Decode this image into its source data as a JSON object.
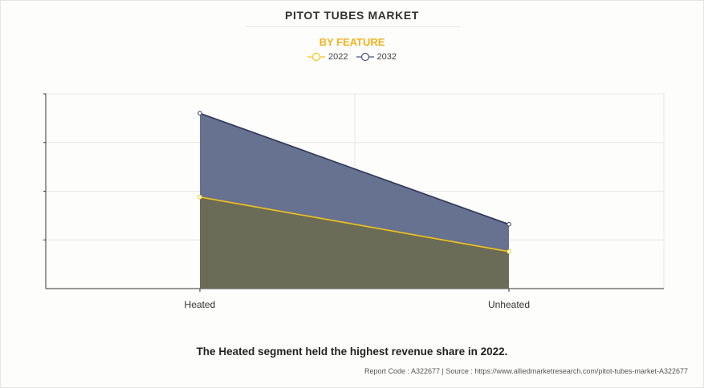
{
  "header": {
    "title": "PITOT TUBES MARKET",
    "subtitle": "BY FEATURE"
  },
  "legend": [
    {
      "label": "2022",
      "color": "#f5c518"
    },
    {
      "label": "2032",
      "color": "#4b5378"
    }
  ],
  "chart_data": {
    "type": "area",
    "title": "PITOT TUBES MARKET",
    "subtitle": "BY FEATURE",
    "categories": [
      "Heated",
      "Unheated"
    ],
    "series": [
      {
        "name": "2022",
        "values": [
          0.47,
          0.19
        ],
        "color": "#f5c518",
        "fill": "#6b6b55"
      },
      {
        "name": "2032",
        "values": [
          0.9,
          0.33
        ],
        "color": "#2e3658",
        "fill": "#5f6a8a"
      }
    ],
    "ylim": [
      0,
      1
    ],
    "grid": true,
    "legend_position": "top-center"
  },
  "footer": {
    "caption": "The Heated segment held the highest revenue share in 2022.",
    "source": "Report Code : A322677  |  Source : https://www.alliedmarketresearch.com/pitot-tubes-market-A322677"
  }
}
